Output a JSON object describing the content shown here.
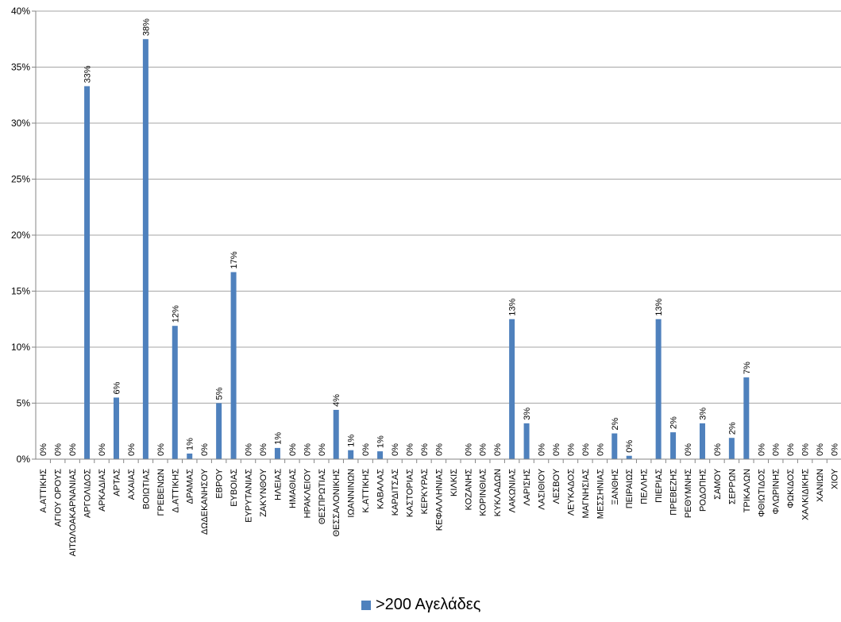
{
  "chart_data": {
    "type": "bar",
    "categories": [
      "Α.ΑΤΤΙΚΗΣ",
      "ΑΓΙΟΥ ΟΡΟΥΣ",
      "ΑΙΤΩΛΟΑΚΑΡΝΑΝΙΑΣ",
      "ΑΡΓΟΛΙΔΟΣ",
      "ΑΡΚΑΔΙΑΣ",
      "ΑΡΤΑΣ",
      "ΑΧΑΙΑΣ",
      "ΒΟΙΩΤΙΑΣ",
      "ΓΡΕΒΕΝΩΝ",
      "Δ.ΑΤΤΙΚΗΣ",
      "ΔΡΑΜΑΣ",
      "ΔΩΔΕΚΑΝΗΣΟΥ",
      "ΕΒΡΟΥ",
      "ΕΥΒΟΙΑΣ",
      "ΕΥΡΥΤΑΝΙΑΣ",
      "ΖΑΚΥΝΘΟΥ",
      "ΗΛΕΙΑΣ",
      "ΗΜΑΘΙΑΣ",
      "ΗΡΑΚΛΕΙΟΥ",
      "ΘΕΣΠΡΩΤΙΑΣ",
      "ΘΕΣΣΑΛΟΝΙΚΗΣ",
      "ΙΩΑΝΝΙΝΩΝ",
      "Κ.ΑΤΤΙΚΗΣ",
      "ΚΑΒΑΛΑΣ",
      "ΚΑΡΔΙΤΣΑΣ",
      "ΚΑΣΤΟΡΙΑΣ",
      "ΚΕΡΚΥΡΑΣ",
      "ΚΕΦΑΛΛΗΝΙΑΣ",
      "ΚΙΛΚΙΣ",
      "ΚΟΖΑΝΗΣ",
      "ΚΟΡΙΝΘΙΑΣ",
      "ΚΥΚΛΑΔΩΝ",
      "ΛΑΚΩΝΙΑΣ",
      "ΛΑΡΙΣΗΣ",
      "ΛΑΣΙΘΙΟΥ",
      "ΛΕΣΒΟΥ",
      "ΛΕΥΚΑΔΟΣ",
      "ΜΑΓΝΗΣΙΑΣ",
      "ΜΕΣΣΗΝΙΑΣ",
      "ΞΑΝΘΗΣ",
      "ΠΕΙΡΑΙΩΣ",
      "ΠΕΛΛΗΣ",
      "ΠΙΕΡΙΑΣ",
      "ΠΡΕΒΕΖΗΣ",
      "ΡΕΘΥΜΝΗΣ",
      "ΡΟΔΟΠΗΣ",
      "ΣΑΜΟΥ",
      "ΣΕΡΡΩΝ",
      "ΤΡΙΚΑΛΩΝ",
      "ΦΘΙΩΤΙΔΟΣ",
      "ΦΛΩΡΙΝΗΣ",
      "ΦΩΚΙΔΟΣ",
      "ΧΑΛΚΙΔΙΚΗΣ",
      "ΧΑΝΙΩΝ",
      "ΧΙΟΥ"
    ],
    "series": [
      {
        "name": ">200 Αγελάδες",
        "values": [
          0,
          0,
          0,
          33.3,
          0,
          5.5,
          0,
          37.5,
          0,
          11.9,
          0.5,
          0,
          5.0,
          16.7,
          0,
          0,
          1.0,
          0,
          0,
          0,
          4.4,
          0.8,
          0,
          0.7,
          0,
          0,
          0,
          0,
          0,
          0,
          0,
          0,
          12.5,
          3.2,
          0,
          0,
          0,
          0,
          0,
          2.3,
          0.3,
          0,
          12.5,
          2.4,
          0,
          3.2,
          0,
          1.9,
          7.3,
          0,
          0,
          0,
          0,
          0,
          0
        ],
        "labels": [
          "0%",
          "0%",
          "0%",
          "33%",
          "0%",
          "6%",
          "0%",
          "38%",
          "0%",
          "12%",
          "1%",
          "0%",
          "5%",
          "17%",
          "0%",
          "0%",
          "1%",
          "0%",
          "0%",
          "0%",
          "4%",
          "1%",
          "0%",
          "1%",
          "0%",
          "0%",
          "0%",
          "0%",
          "",
          "0%",
          "0%",
          "0%",
          "13%",
          "3%",
          "0%",
          "0%",
          "0%",
          "0%",
          "0%",
          "2%",
          "0%",
          "",
          "13%",
          "2%",
          "0%",
          "3%",
          "0%",
          "2%",
          "7%",
          "0%",
          "0%",
          "0%",
          "0%",
          "0%",
          "0%"
        ]
      }
    ],
    "yticks": [
      "0%",
      "5%",
      "10%",
      "15%",
      "20%",
      "25%",
      "30%",
      "35%",
      "40%"
    ],
    "ylim": [
      0,
      40
    ],
    "grid": true,
    "legend": "bottom",
    "colors": {
      "bar": "#4F81BD",
      "grid": "#A6A6A6",
      "axis": "#868686"
    }
  }
}
